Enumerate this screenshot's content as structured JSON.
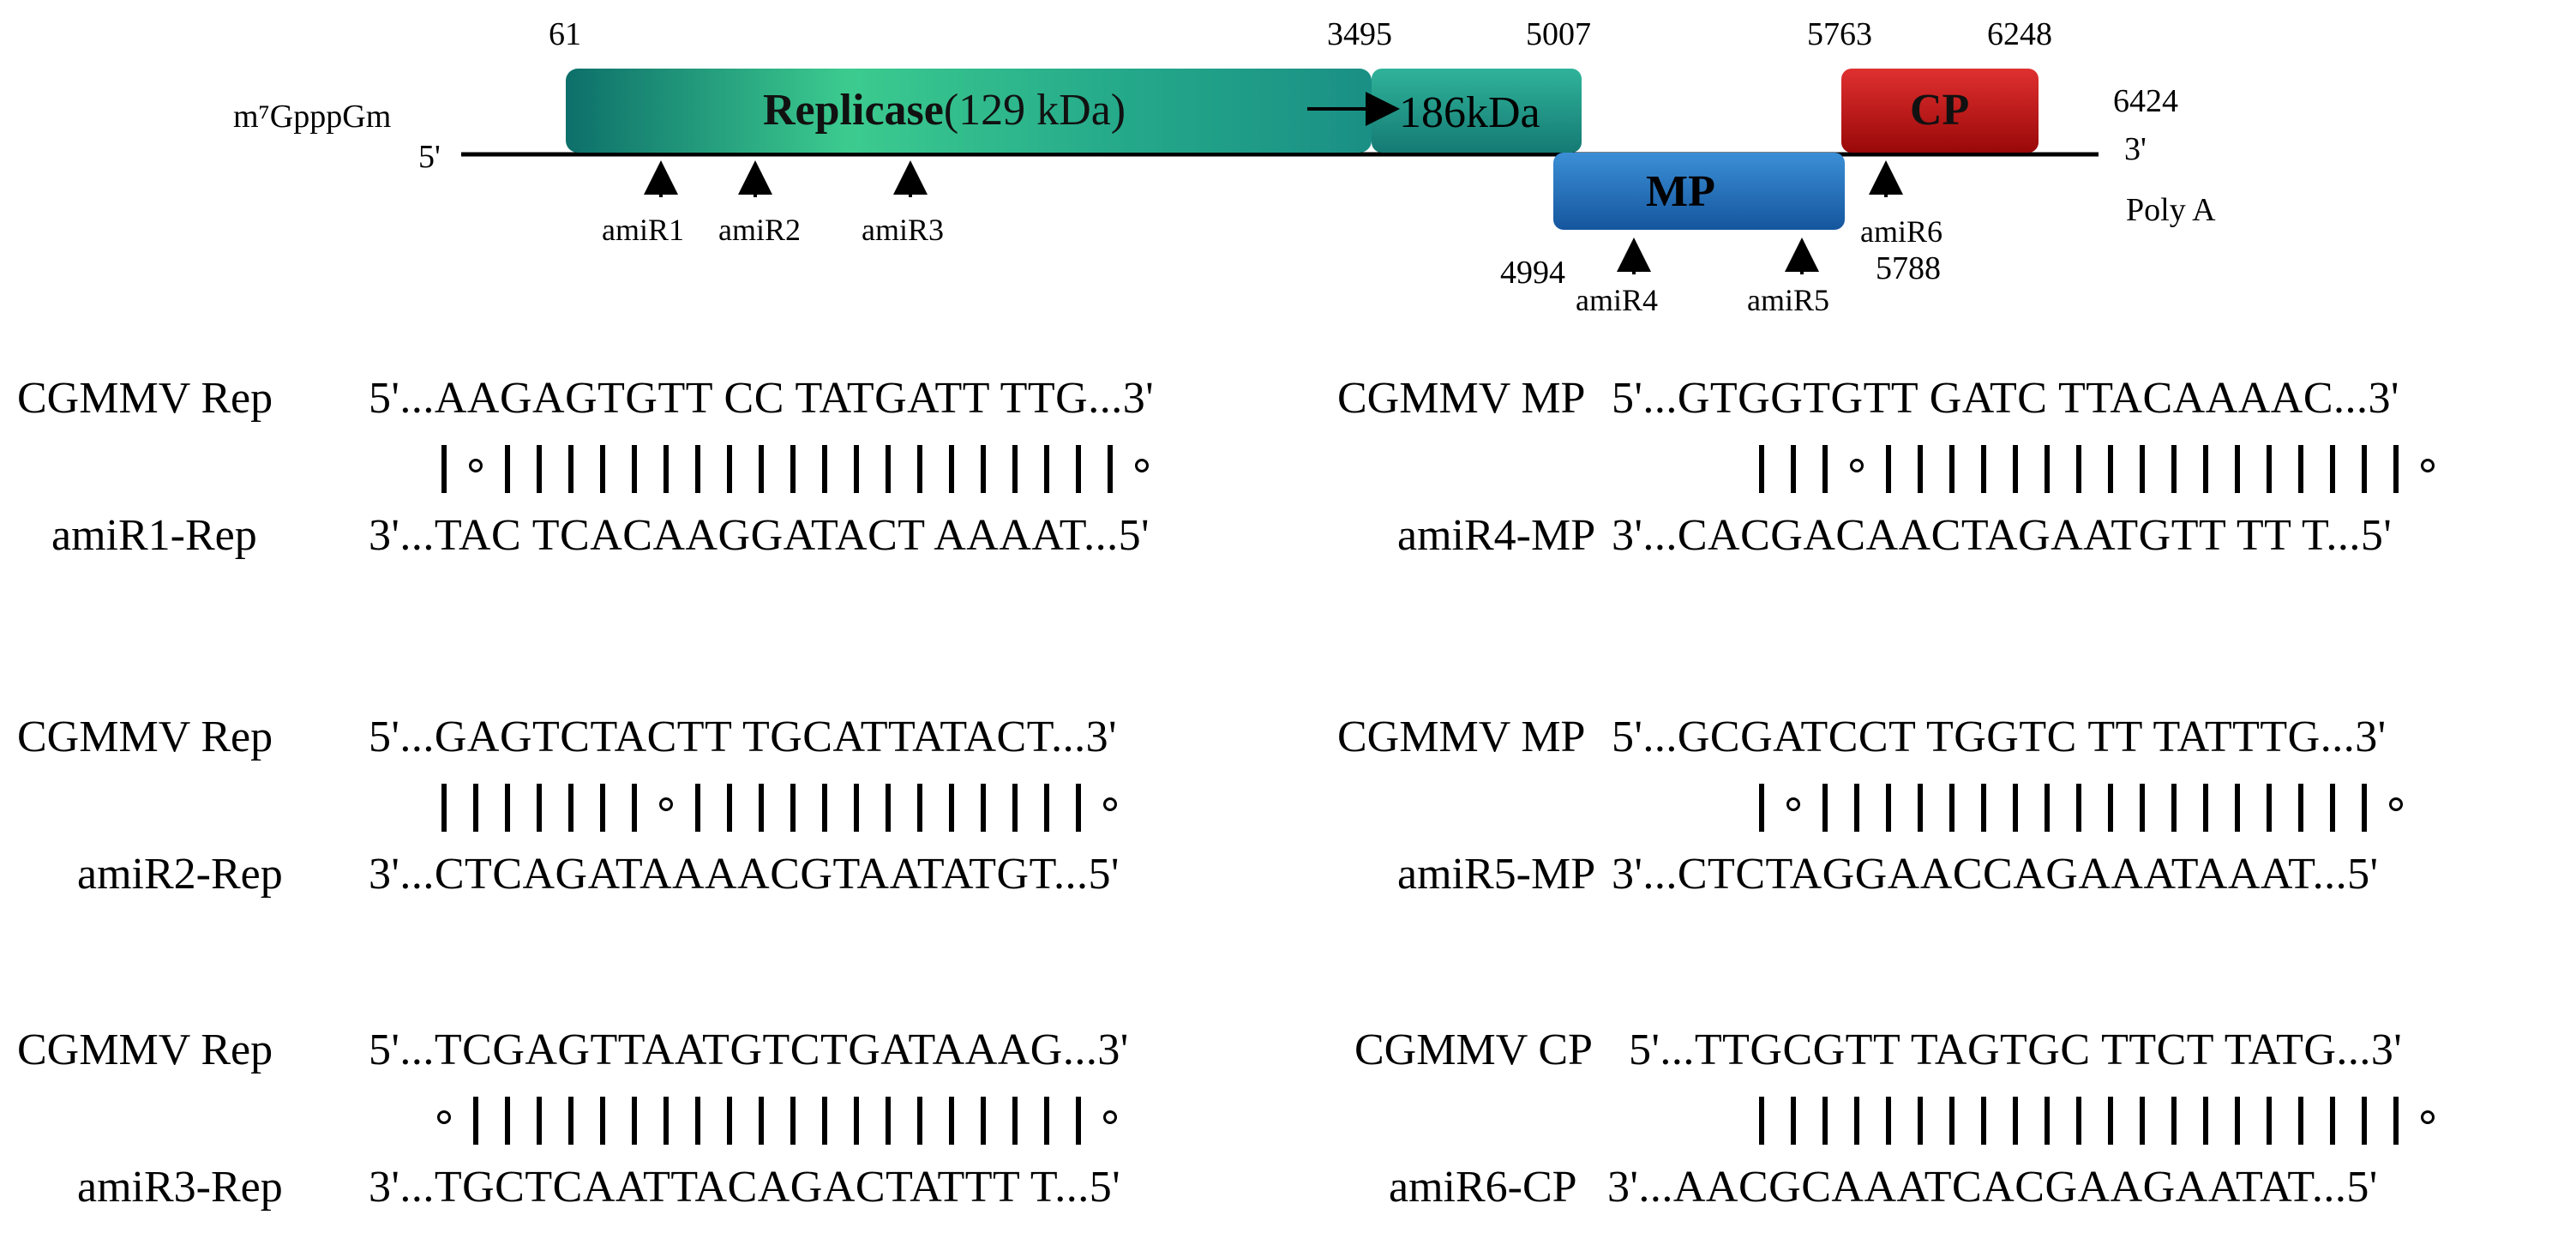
{
  "genome": {
    "cap": "m⁷GpppGm",
    "five_prime": "5'",
    "three_prime": "3'",
    "poly_a": "Poly A",
    "end_position": "6424",
    "genes": [
      {
        "id": "replicase",
        "label_bold": "Replicase",
        "label_rest": "(129 kDa)",
        "start": "61",
        "end": "3495",
        "color": "#1f9a86"
      },
      {
        "id": "readthrough",
        "label": "186kDa",
        "start": "3495",
        "end": "5007",
        "color": "#1f9a86"
      },
      {
        "id": "mp",
        "label": "MP",
        "start": "4994",
        "end": "5788",
        "color": "#1f6fb8"
      },
      {
        "id": "cp",
        "label": "CP",
        "start": "5763",
        "end": "6248",
        "color": "#c41010"
      }
    ],
    "targets": [
      "amiR1",
      "amiR2",
      "amiR3",
      "amiR4",
      "amiR5",
      "amiR6"
    ]
  },
  "alignments": [
    {
      "viral_name": "CGMMV Rep",
      "viral_seq": "5'...AAGAGTGTT CC TATGATT TTG...3'",
      "amir_name": "amiR1-Rep",
      "amir_seq": "3'...TAC TCACAAGGATACT AAAAT...5'",
      "pattern": "|o||||||||||||||||||||o"
    },
    {
      "viral_name": "CGMMV MP",
      "viral_seq": "5'...GTGGTGTT GATC TTACAAAAC...3'",
      "amir_name": "amiR4-MP",
      "amir_seq": "3'...CACGACAACTAGAATGTT TT T...5'",
      "pattern": "|||o|||||||||||||||||o"
    },
    {
      "viral_name": "CGMMV Rep",
      "viral_seq": "5'...GAGTCTACTT TGCATTATACT...3'",
      "amir_name": "amiR2-Rep",
      "amir_seq": "3'...CTCAGATAAAACGTAATATGT...5'",
      "pattern": "|||||||o|||||||||||||o"
    },
    {
      "viral_name": "CGMMV MP",
      "viral_seq": "5'...GCGATCCT TGGTC TT TATTTG...3'",
      "amir_name": "amiR5-MP",
      "amir_seq": "3'...CTCTAGGAACCAGAAATAAAT...5'",
      "pattern": "|o||||||||||||||||||o"
    },
    {
      "viral_name": "CGMMV Rep",
      "viral_seq": "5'...TCGAGTTAATGTCTGATAAAG...3'",
      "amir_name": "amiR3-Rep",
      "amir_seq": "3'...TGCTCAATTACAGACTATTT T...5'",
      "pattern": "o||||||||||||||||||||o"
    },
    {
      "viral_name": "CGMMV CP",
      "viral_seq": "5'...TTGCGTT TAGTGC TTCT TATG...3'",
      "amir_name": "amiR6-CP",
      "amir_seq": "3'...AACGCAAATCACGAAGAATAT...5'",
      "pattern": "|||||||||||||||||||||o"
    }
  ]
}
